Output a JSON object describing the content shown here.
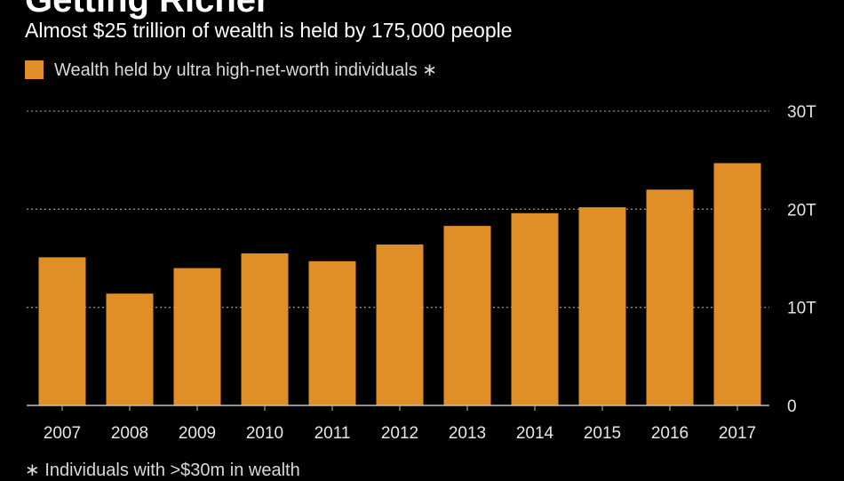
{
  "title": "Getting Richer",
  "subtitle": "Almost $25 trillion of wealth is held by 175,000 people",
  "legend": {
    "label": "Wealth held by ultra high-net-worth individuals ∗"
  },
  "footnote": "∗ Individuals with >$30m in wealth",
  "colors": {
    "bar": "#e08e27",
    "background": "#000000",
    "grid": "#8a8a8a",
    "axis": "#bfbfbf"
  },
  "chart_data": {
    "type": "bar",
    "categories": [
      "2007",
      "2008",
      "2009",
      "2010",
      "2011",
      "2012",
      "2013",
      "2014",
      "2015",
      "2016",
      "2017"
    ],
    "series": [
      {
        "name": "Wealth held by ultra high-net-worth individuals ∗",
        "values": [
          15.1,
          11.4,
          14.0,
          15.5,
          14.7,
          16.4,
          18.3,
          19.6,
          20.2,
          22.0,
          24.7
        ]
      }
    ],
    "yticks": [
      {
        "value": 0,
        "label": "0"
      },
      {
        "value": 10,
        "label": "10T"
      },
      {
        "value": 20,
        "label": "20T"
      },
      {
        "value": 30,
        "label": "30T"
      }
    ],
    "ylim": [
      0,
      30
    ],
    "grid": true,
    "legend_position": "top-left",
    "y_axis_side": "right"
  }
}
